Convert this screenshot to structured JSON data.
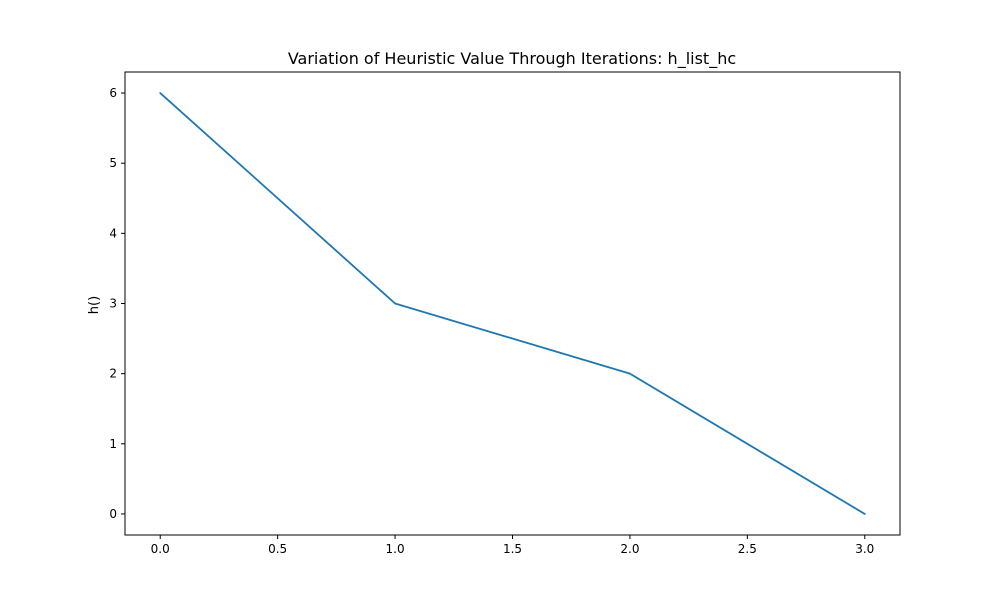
{
  "chart_data": {
    "type": "line",
    "title": "Variation of Heuristic Value Through Iterations: h_list_hc",
    "xlabel": "",
    "ylabel": "h()",
    "x": [
      0,
      1,
      2,
      3
    ],
    "series": [
      {
        "values": [
          6,
          3,
          2,
          0
        ],
        "color": "#1f77b4"
      }
    ],
    "xlim": [
      -0.15,
      3.15
    ],
    "ylim": [
      -0.3,
      6.3
    ],
    "xticks": [
      0.0,
      0.5,
      1.0,
      1.5,
      2.0,
      2.5,
      3.0
    ],
    "xtick_labels": [
      "0.0",
      "0.5",
      "1.0",
      "1.5",
      "2.0",
      "2.5",
      "3.0"
    ],
    "yticks": [
      0,
      1,
      2,
      3,
      4,
      5,
      6
    ],
    "ytick_labels": [
      "0",
      "1",
      "2",
      "3",
      "4",
      "5",
      "6"
    ],
    "grid": false,
    "legend": "none"
  }
}
